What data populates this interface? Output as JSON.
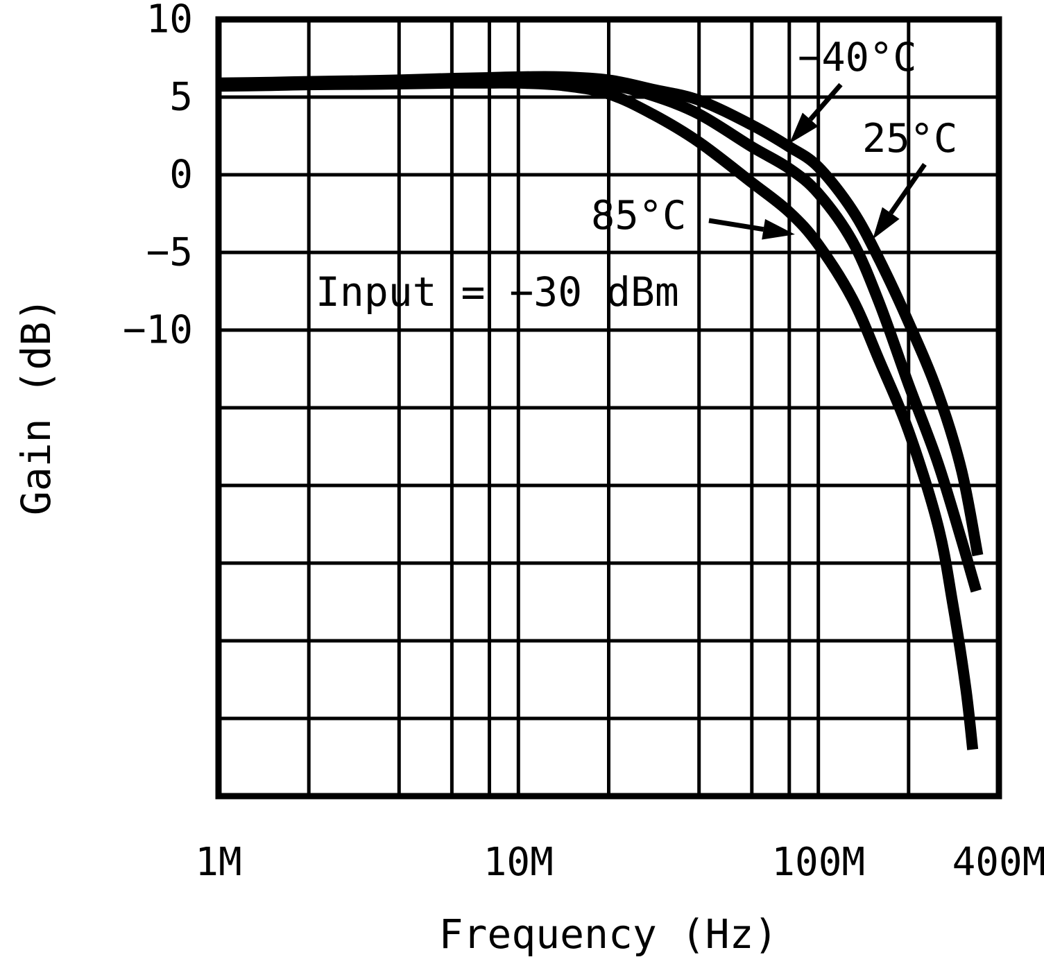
{
  "figure": {
    "background": "#ffffff",
    "ink": "#000000"
  },
  "chart_data": {
    "type": "line",
    "title": "",
    "xlabel": "Frequency (Hz)",
    "ylabel": "Gain (dB)",
    "annotation": "Input = −30 dBm",
    "x_scale": "log",
    "xlim_mhz": [
      1,
      400
    ],
    "ylim": [
      -40,
      10
    ],
    "grid": true,
    "x_ticks": [
      {
        "value": 1,
        "label": "1M"
      },
      {
        "value": 10,
        "label": "10M"
      },
      {
        "value": 100,
        "label": "100M"
      },
      {
        "value": 400,
        "label": "400M"
      }
    ],
    "y_ticks": [
      {
        "value": 10,
        "label": "10"
      },
      {
        "value": 5,
        "label": "5"
      },
      {
        "value": 0,
        "label": "0"
      },
      {
        "value": -5,
        "label": "−5"
      },
      {
        "value": -10,
        "label": "−10"
      }
    ],
    "x_gridlines_mhz": [
      2,
      4,
      6,
      8,
      10,
      20,
      40,
      60,
      80,
      100,
      200
    ],
    "y_gridlines_db": [
      5,
      0,
      -5,
      -10,
      -15,
      -20,
      -25,
      -30,
      -35
    ],
    "legend_position": "inline-arrows",
    "series": [
      {
        "name": "minus40C",
        "label": "−40°C",
        "x_mhz": [
          1,
          1.5,
          2,
          3,
          4,
          6,
          8,
          10,
          14,
          20,
          28,
          40,
          60,
          80,
          100,
          130,
          160,
          200,
          250,
          300,
          340
        ],
        "gain_db": [
          5.9,
          5.95,
          6.0,
          6.05,
          6.1,
          6.2,
          6.25,
          6.3,
          6.3,
          6.1,
          5.5,
          4.8,
          3.2,
          1.8,
          0.5,
          -2.3,
          -5.5,
          -9.5,
          -14.0,
          -19.0,
          -24.5
        ]
      },
      {
        "name": "25C",
        "label": "25°C",
        "x_mhz": [
          1,
          1.5,
          2,
          3,
          4,
          6,
          8,
          10,
          14,
          20,
          28,
          40,
          60,
          80,
          100,
          130,
          160,
          200,
          250,
          300,
          336
        ],
        "gain_db": [
          5.8,
          5.85,
          5.9,
          5.95,
          6.0,
          6.05,
          6.1,
          6.1,
          6.05,
          5.8,
          5.1,
          3.9,
          1.8,
          0.4,
          -1.2,
          -4.3,
          -8.3,
          -13.5,
          -18.5,
          -23.5,
          -26.8
        ]
      },
      {
        "name": "85C",
        "label": "85°C",
        "x_mhz": [
          1,
          1.5,
          2,
          3,
          4,
          6,
          8,
          10,
          14,
          20,
          28,
          40,
          60,
          80,
          100,
          130,
          160,
          200,
          250,
          280,
          310,
          327
        ],
        "gain_db": [
          5.7,
          5.75,
          5.8,
          5.82,
          5.85,
          5.9,
          5.9,
          5.9,
          5.75,
          5.2,
          3.9,
          2.1,
          -0.5,
          -2.4,
          -4.5,
          -8.0,
          -12.0,
          -16.5,
          -22.5,
          -27.5,
          -33.0,
          -37.0
        ]
      }
    ]
  }
}
